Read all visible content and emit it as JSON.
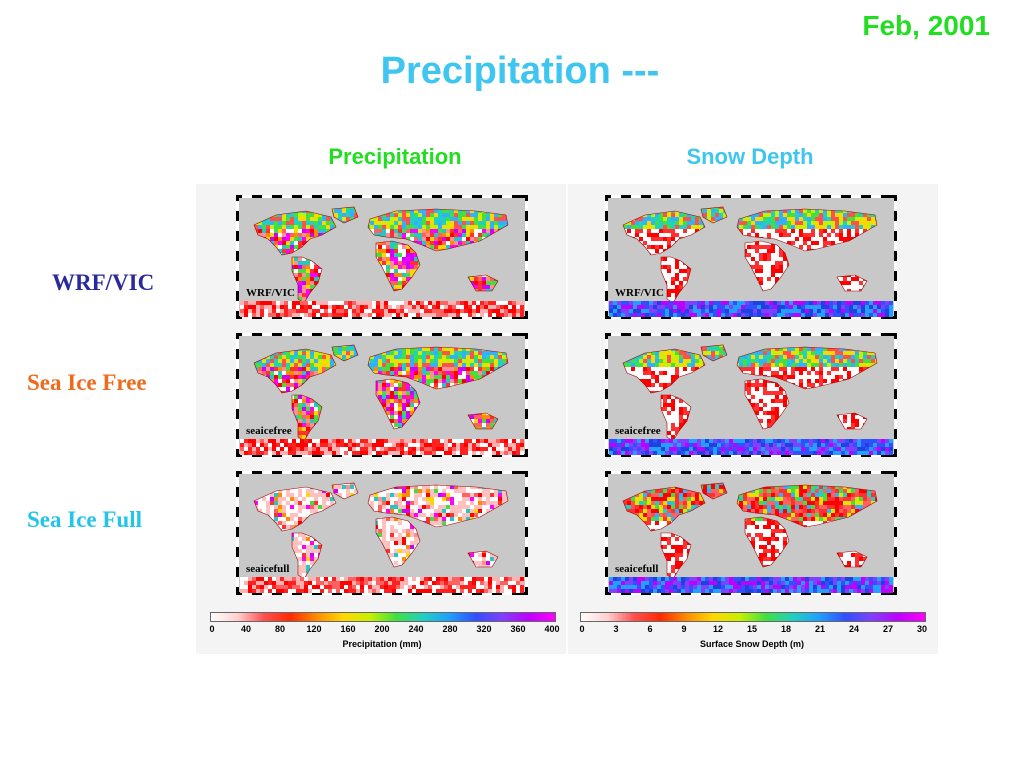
{
  "header": {
    "date": "Feb, 2001",
    "title": "Precipitation ---"
  },
  "columns": {
    "left": "Precipitation",
    "right": "Snow Depth"
  },
  "rows": [
    {
      "label": "WRF/VIC",
      "map_label": "WRF/VIC",
      "color": "#2a2a9c"
    },
    {
      "label": "Sea Ice Free",
      "map_label": "seaicefree",
      "color": "#ee6a1c"
    },
    {
      "label": "Sea Ice Full",
      "map_label": "seaicefull",
      "color": "#22c4e8"
    }
  ],
  "colorbars": {
    "precip": {
      "ticks": [
        "0",
        "40",
        "80",
        "120",
        "160",
        "200",
        "240",
        "280",
        "320",
        "360",
        "400"
      ],
      "label": "Precipitation (mm)"
    },
    "snow": {
      "ticks": [
        "0",
        "3",
        "6",
        "9",
        "12",
        "15",
        "18",
        "21",
        "24",
        "27",
        "30"
      ],
      "label": "Surface Snow Depth (m)"
    }
  },
  "colors": {
    "ocean": "#c8c8c8",
    "title": "#3ec6f0",
    "date": "#22dd22"
  }
}
